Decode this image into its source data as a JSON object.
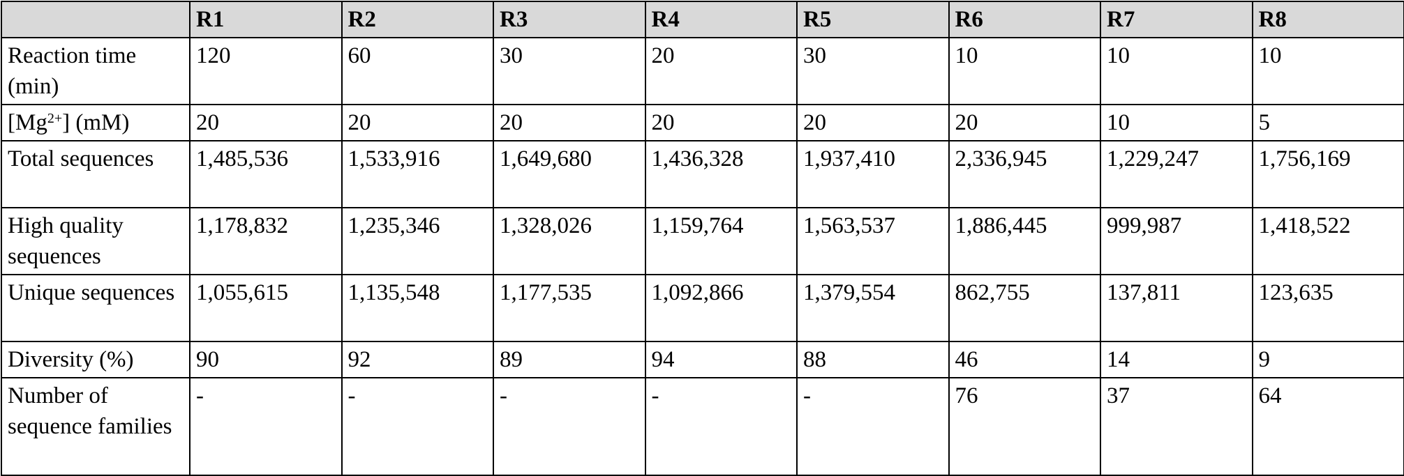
{
  "table": {
    "columns": [
      "",
      "R1",
      "R2",
      "R3",
      "R4",
      "R5",
      "R6",
      "R7",
      "R8"
    ],
    "rows": [
      {
        "id": "time",
        "label": "Reaction time (min)",
        "values": [
          "120",
          "60",
          "30",
          "20",
          "30",
          "10",
          "10",
          "10"
        ]
      },
      {
        "id": "mg",
        "label_parts": {
          "prefix": "[Mg",
          "sup": "2+",
          "suffix": "] (mM)"
        },
        "values": [
          "20",
          "20",
          "20",
          "20",
          "20",
          "20",
          "10",
          "5"
        ]
      },
      {
        "id": "total",
        "label": "Total sequences",
        "values": [
          "1,485,536",
          "1,533,916",
          "1,649,680",
          "1,436,328",
          "1,937,410",
          "2,336,945",
          "1,229,247",
          "1,756,169"
        ]
      },
      {
        "id": "hq",
        "label": "High quality sequences",
        "values": [
          "1,178,832",
          "1,235,346",
          "1,328,026",
          "1,159,764",
          "1,563,537",
          "1,886,445",
          "999,987",
          "1,418,522"
        ]
      },
      {
        "id": "unique",
        "label": "Unique sequences",
        "values": [
          "1,055,615",
          "1,135,548",
          "1,177,535",
          "1,092,866",
          "1,379,554",
          "862,755",
          "137,811",
          "123,635"
        ]
      },
      {
        "id": "div",
        "label": "Diversity (%)",
        "values": [
          "90",
          "92",
          "89",
          "94",
          "88",
          "46",
          "14",
          "9"
        ]
      },
      {
        "id": "fam",
        "label": "Number of sequence families",
        "values": [
          "-",
          "-",
          "-",
          "-",
          "-",
          "76",
          "37",
          "64"
        ]
      }
    ]
  },
  "colors": {
    "header_bg": "#d9d9d9",
    "border": "#000000",
    "text": "#000000"
  }
}
